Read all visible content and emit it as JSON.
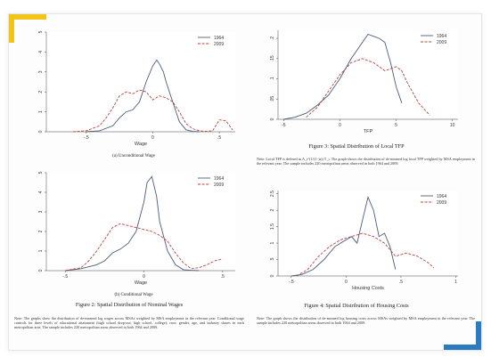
{
  "colors": {
    "series_1964": "#4a5b7c",
    "series_2009": "#b8433f",
    "accent_top": "#f0c419",
    "accent_bottom": "#2a7bbf"
  },
  "captions": {
    "fig1a_sub": "(a) Unconditional Wage",
    "fig1b_sub": "(b) Conditional Wage",
    "fig2": "Figure 2: Spatial Distribution of Nominal Wages",
    "fig3": "Figure 3: Spatial Distribution of Local TFP",
    "fig4": "Figure 4: Spatial Distribution of Housing Costs",
    "note_left": "Note: The graphs show the distribution of de-meaned log wages across MSAs weighted by MSA employment in the relevant year. Conditional wage controls for three levels of educational attainment (high school drop-out, high school, college); race; gender, age, and industry shares in each metropolitan area. The sample includes 220 metropolitan areas observed in both 1964 and 2009.",
    "note_tfp": "Note: Local TFP is defined as A_i^(1/(1−α)) T_i. The graph shows the distribution of de-meaned log local TFP weighted by MSA employment in the relevant year. The sample includes 220 metropolitan areas observed in both 1964 and 2009.",
    "note_housing": "Note: The graph shows the distribution of de-meaned log housing costs across MSAs weighted by MSA employment in the relevant year. The sample includes 220 metropolitan areas observed in both 1964 and 2009."
  },
  "chart_data": [
    {
      "id": "unconditional-wage",
      "type": "line",
      "xlabel": "Wage",
      "xlim": [
        -0.8,
        0.62
      ],
      "ylim": [
        0,
        5
      ],
      "xticks": [
        -0.5,
        0,
        0.5
      ],
      "xtick_labels": [
        "-.5",
        "0",
        ".5"
      ],
      "yticks": [
        0,
        1,
        2,
        3,
        4,
        5
      ],
      "legend": "top-right",
      "series": [
        {
          "name": "1964",
          "x": [
            -0.5,
            -0.4,
            -0.3,
            -0.25,
            -0.2,
            -0.15,
            -0.1,
            -0.05,
            0,
            0.03,
            0.05,
            0.08,
            0.1,
            0.15,
            0.2,
            0.25,
            0.3,
            0.35
          ],
          "y": [
            0,
            0.05,
            0.3,
            0.7,
            1.0,
            1.1,
            1.5,
            2.5,
            3.3,
            3.6,
            3.4,
            3.0,
            2.5,
            1.5,
            0.5,
            0.1,
            0.02,
            0
          ]
        },
        {
          "name": "2009",
          "x": [
            -0.6,
            -0.5,
            -0.4,
            -0.35,
            -0.3,
            -0.25,
            -0.2,
            -0.15,
            -0.1,
            -0.05,
            0,
            0.05,
            0.1,
            0.15,
            0.2,
            0.25,
            0.3,
            0.35,
            0.4,
            0.45,
            0.5,
            0.55,
            0.6
          ],
          "y": [
            0,
            0.05,
            0.3,
            0.7,
            1.2,
            1.8,
            2.0,
            1.9,
            2.1,
            2.0,
            1.6,
            1.8,
            1.7,
            1.5,
            1.0,
            0.4,
            0.15,
            0.05,
            0.02,
            0.05,
            0.6,
            0.55,
            0.1
          ]
        }
      ]
    },
    {
      "id": "conditional-wage",
      "type": "line",
      "xlabel": "Wage",
      "xlim": [
        -0.62,
        0.58
      ],
      "ylim": [
        0,
        5
      ],
      "xticks": [
        -0.5,
        0,
        0.5
      ],
      "xtick_labels": [
        "-.5",
        "0",
        ".5"
      ],
      "yticks": [
        0,
        1,
        2,
        3,
        4,
        5
      ],
      "legend": "top-right",
      "series": [
        {
          "name": "1964",
          "x": [
            -0.5,
            -0.4,
            -0.3,
            -0.25,
            -0.2,
            -0.15,
            -0.1,
            -0.05,
            0,
            0.02,
            0.05,
            0.08,
            0.1,
            0.15,
            0.2,
            0.25,
            0.3,
            0.35
          ],
          "y": [
            0,
            0.1,
            0.3,
            0.5,
            0.9,
            1.1,
            1.4,
            2.0,
            3.5,
            4.5,
            4.8,
            3.8,
            2.5,
            1.0,
            0.3,
            0.05,
            0.02,
            0
          ]
        },
        {
          "name": "2009",
          "x": [
            -0.5,
            -0.4,
            -0.35,
            -0.3,
            -0.25,
            -0.2,
            -0.15,
            -0.1,
            -0.05,
            0,
            0.05,
            0.1,
            0.15,
            0.2,
            0.25,
            0.3,
            0.35,
            0.4,
            0.45,
            0.5
          ],
          "y": [
            0,
            0.15,
            0.5,
            1.0,
            1.6,
            2.2,
            2.4,
            2.3,
            2.2,
            2.1,
            2.0,
            1.8,
            1.5,
            0.9,
            0.4,
            0.1,
            0.15,
            0.3,
            0.5,
            0.6
          ]
        }
      ]
    },
    {
      "id": "local-tfp",
      "type": "line",
      "xlabel": "TFP",
      "xlim": [
        -5.5,
        10.5
      ],
      "ylim": [
        0,
        0.22
      ],
      "xticks": [
        -5,
        0,
        5,
        10
      ],
      "xtick_labels": [
        "-5",
        "0",
        "5",
        "10"
      ],
      "yticks": [
        0,
        0.05,
        0.1,
        0.15,
        0.2
      ],
      "ytick_labels": [
        "0",
        ".05",
        ".1",
        ".15",
        ".2"
      ],
      "legend": "top-right",
      "series": [
        {
          "name": "1964",
          "x": [
            -5,
            -4,
            -3,
            -2,
            -1,
            0,
            1,
            2,
            2.5,
            3,
            3.5,
            4,
            4.5,
            5,
            5.5
          ],
          "y": [
            0,
            0.005,
            0.015,
            0.035,
            0.06,
            0.1,
            0.15,
            0.19,
            0.21,
            0.205,
            0.2,
            0.19,
            0.14,
            0.08,
            0.04
          ]
        },
        {
          "name": "2009",
          "x": [
            -3,
            -2,
            -1,
            0,
            1,
            2,
            3,
            4,
            5,
            5.5,
            6,
            7,
            8
          ],
          "y": [
            0.005,
            0.03,
            0.07,
            0.11,
            0.14,
            0.15,
            0.14,
            0.12,
            0.13,
            0.12,
            0.09,
            0.04,
            0.01
          ]
        }
      ]
    },
    {
      "id": "housing-costs",
      "type": "line",
      "xlabel": "Housing Costs",
      "xlim": [
        -0.62,
        1.02
      ],
      "ylim": [
        0,
        2.6
      ],
      "xticks": [
        -0.5,
        0,
        0.5,
        1
      ],
      "xtick_labels": [
        "-.5",
        "0",
        ".5",
        "1"
      ],
      "yticks": [
        0,
        0.5,
        1,
        1.5,
        2,
        2.5
      ],
      "ytick_labels": [
        "0",
        ".5",
        "1",
        "1.5",
        "2",
        "2.5"
      ],
      "legend": "top-right",
      "series": [
        {
          "name": "1964",
          "x": [
            -0.5,
            -0.4,
            -0.3,
            -0.2,
            -0.1,
            0,
            0.05,
            0.1,
            0.15,
            0.2,
            0.25,
            0.3,
            0.35,
            0.4,
            0.45
          ],
          "y": [
            0,
            0.05,
            0.2,
            0.5,
            0.9,
            1.1,
            1.2,
            1.0,
            1.7,
            2.4,
            2.0,
            1.2,
            1.3,
            0.9,
            0.2
          ]
        },
        {
          "name": "2009",
          "x": [
            -0.45,
            -0.35,
            -0.25,
            -0.15,
            -0.05,
            0.05,
            0.15,
            0.25,
            0.35,
            0.45,
            0.55,
            0.65,
            0.75,
            0.8
          ],
          "y": [
            0,
            0.2,
            0.6,
            0.9,
            1.1,
            1.2,
            1.3,
            1.2,
            1.0,
            0.6,
            0.7,
            0.6,
            0.4,
            0.25
          ]
        }
      ]
    }
  ]
}
